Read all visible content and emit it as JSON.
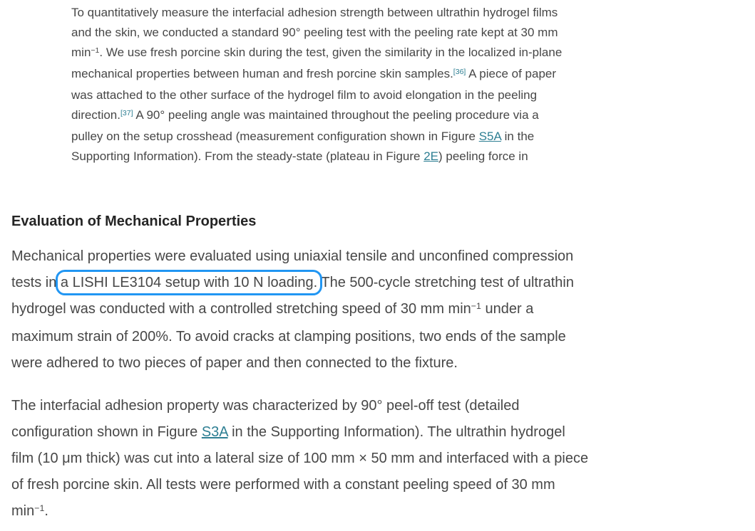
{
  "colors": {
    "background": "#ffffff",
    "body_text": "#474747",
    "heading_text": "#252525",
    "link": "#2e7f93",
    "highlight_box_border": "#2196f3"
  },
  "intro": {
    "lines": [
      {
        "segs": [
          {
            "t": "To quantitatively measure the interfacial adhesion strength between ultrathin hydrogel films"
          }
        ]
      },
      {
        "segs": [
          {
            "t": "and the skin, we conducted a standard 90° peeling test with the peeling rate kept at 30 mm"
          }
        ]
      },
      {
        "segs": [
          {
            "t": "min"
          },
          {
            "sup": "−1"
          },
          {
            "t": ". We use fresh porcine skin during the test, given the similarity in the localized in-plane"
          }
        ]
      },
      {
        "segs": [
          {
            "t": "mechanical properties between human and fresh porcine skin samples."
          },
          {
            "ref": "[36]"
          },
          {
            "t": " A piece of paper"
          }
        ]
      },
      {
        "segs": [
          {
            "t": "was attached to the other surface of the hydrogel film to avoid elongation in the peeling"
          }
        ]
      },
      {
        "segs": [
          {
            "t": "direction."
          },
          {
            "ref": "[37]"
          },
          {
            "t": " A 90° peeling angle was maintained throughout the peeling procedure via a"
          }
        ]
      },
      {
        "segs": [
          {
            "t": "pulley on the setup crosshead (measurement configuration shown in Figure "
          },
          {
            "link": "S5A"
          },
          {
            "t": " in the"
          }
        ]
      },
      {
        "segs": [
          {
            "t": "Supporting Information). From the steady-state (plateau in Figure "
          },
          {
            "link": "2E"
          },
          {
            "t": ") peeling force in"
          }
        ]
      }
    ]
  },
  "heading": {
    "text": "Evaluation of Mechanical Properties"
  },
  "methods1": {
    "lines": [
      {
        "segs": [
          {
            "t": "Mechanical properties were evaluated using uniaxial tensile and unconfined compression"
          }
        ]
      },
      {
        "segs": [
          {
            "t": "tests in "
          },
          {
            "boxed": "a LISHI LE3104 setup with 10 N loading."
          },
          {
            "t": " The 500-cycle stretching test of ultrathin"
          }
        ]
      },
      {
        "segs": [
          {
            "t": "hydrogel was conducted with a controlled stretching speed of 30 mm min"
          },
          {
            "sup": "−1"
          },
          {
            "t": " under a"
          }
        ]
      },
      {
        "segs": [
          {
            "t": "maximum strain of 200%. To avoid cracks at clamping positions, two ends of the sample"
          }
        ]
      },
      {
        "segs": [
          {
            "t": "were adhered to two pieces of paper and then connected to the fixture."
          }
        ]
      }
    ]
  },
  "methods2": {
    "lines": [
      {
        "segs": [
          {
            "t": "The interfacial adhesion property was characterized by 90° peel-off test (detailed"
          }
        ]
      },
      {
        "segs": [
          {
            "t": "configuration shown in Figure "
          },
          {
            "link": "S3A"
          },
          {
            "t": " in the Supporting Information). The ultrathin hydrogel"
          }
        ]
      },
      {
        "segs": [
          {
            "t": "film (10 μm thick) was cut into a lateral size of 100 mm × 50 mm and interfaced with a piece"
          }
        ]
      },
      {
        "segs": [
          {
            "t": "of fresh porcine skin. All tests were performed with a constant peeling speed of 30 mm"
          }
        ]
      },
      {
        "segs": [
          {
            "t": "min"
          },
          {
            "sup": "−1"
          },
          {
            "t": "."
          }
        ]
      }
    ]
  }
}
